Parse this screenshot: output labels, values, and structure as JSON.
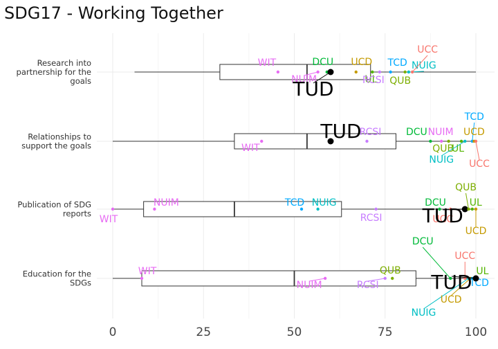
{
  "chart_data": {
    "type": "boxplot",
    "title": "SDG17 - Working Together",
    "xlabel": "",
    "ylabel": "",
    "xlim": [
      0,
      100
    ],
    "x_ticks": [
      "0",
      "25",
      "50",
      "75",
      "100"
    ],
    "x_tick_values": [
      0,
      25,
      50,
      75,
      100
    ],
    "grid": true,
    "legend": "none",
    "categories": [
      "Research into partnership for the goals",
      "Relationships to support the goals",
      "Publication of SDG reports",
      "Education for the SDGs"
    ],
    "category_lines": [
      [
        "Research into",
        "partnership for the",
        "goals"
      ],
      [
        "Relationships to",
        "support the goals"
      ],
      [
        "Publication of SDG",
        "reports"
      ],
      [
        "Education for the",
        "SDGs"
      ]
    ],
    "boxes": [
      {
        "min": 6,
        "q1": 29.5,
        "median": 53.5,
        "q3": 71,
        "max": 100
      },
      {
        "min": 0,
        "q1": 33.5,
        "median": 53.5,
        "q3": 78,
        "max": 100
      },
      {
        "min": 0,
        "q1": 8.5,
        "median": 33.5,
        "q3": 63,
        "max": 100
      },
      {
        "min": 0,
        "q1": 8,
        "median": 50,
        "q3": 83.5,
        "max": 100
      }
    ],
    "institution_colors": {
      "WIT": "#E76BF3",
      "NUIM": "#E76BF3",
      "DCU": "#00BA38",
      "UCD": "#C49A00",
      "TCD": "#00A9FF",
      "NUIG": "#00BFC4",
      "UCC": "#F8766D",
      "UL": "#53B400",
      "QUB": "#7CAE00",
      "RCSI": "#C77CFF",
      "TUD": "#000000"
    },
    "points": [
      [
        {
          "name": "WIT",
          "value": 45.5
        },
        {
          "name": "NUIM",
          "value": 56.5
        },
        {
          "name": "DCU",
          "value": 59
        },
        {
          "name": "UCD",
          "value": 67
        },
        {
          "name": "TCD",
          "value": 76.5
        },
        {
          "name": "NUIG",
          "value": 81.5
        },
        {
          "name": "UCC",
          "value": 82.5
        },
        {
          "name": "UL",
          "value": 71.5
        },
        {
          "name": "RCSI",
          "value": 73.5
        },
        {
          "name": "QUB",
          "value": 80.5
        },
        {
          "name": "TUD",
          "value": 60
        }
      ],
      [
        {
          "name": "WIT",
          "value": 41
        },
        {
          "name": "TUD",
          "value": 60
        },
        {
          "name": "RCSI",
          "value": 70
        },
        {
          "name": "DCU",
          "value": 87.5
        },
        {
          "name": "NUIM",
          "value": 90.5
        },
        {
          "name": "QUB",
          "value": 92.5
        },
        {
          "name": "UL",
          "value": 96
        },
        {
          "name": "NUIG",
          "value": 97
        },
        {
          "name": "TCD",
          "value": 99
        },
        {
          "name": "UCD",
          "value": 99.5
        },
        {
          "name": "UCC",
          "value": 100
        }
      ],
      [
        {
          "name": "WIT",
          "value": 0
        },
        {
          "name": "NUIM",
          "value": 11.5
        },
        {
          "name": "TCD",
          "value": 52
        },
        {
          "name": "NUIG",
          "value": 56.5
        },
        {
          "name": "RCSI",
          "value": 72.5
        },
        {
          "name": "DCU",
          "value": 90
        },
        {
          "name": "UCC",
          "value": 93
        },
        {
          "name": "TUD",
          "value": 97
        },
        {
          "name": "QUB",
          "value": 98
        },
        {
          "name": "UL",
          "value": 99
        },
        {
          "name": "UCD",
          "value": 100
        }
      ],
      [
        {
          "name": "WIT",
          "value": 8
        },
        {
          "name": "NUIM",
          "value": 58.5
        },
        {
          "name": "RCSI",
          "value": 75
        },
        {
          "name": "QUB",
          "value": 77
        },
        {
          "name": "DCU",
          "value": 93
        },
        {
          "name": "UCC",
          "value": 97
        },
        {
          "name": "NUIG",
          "value": 98
        },
        {
          "name": "UCD",
          "value": 98.5
        },
        {
          "name": "TCD",
          "value": 99
        },
        {
          "name": "UL",
          "value": 99.5
        },
        {
          "name": "TUD",
          "value": 100
        }
      ]
    ]
  }
}
